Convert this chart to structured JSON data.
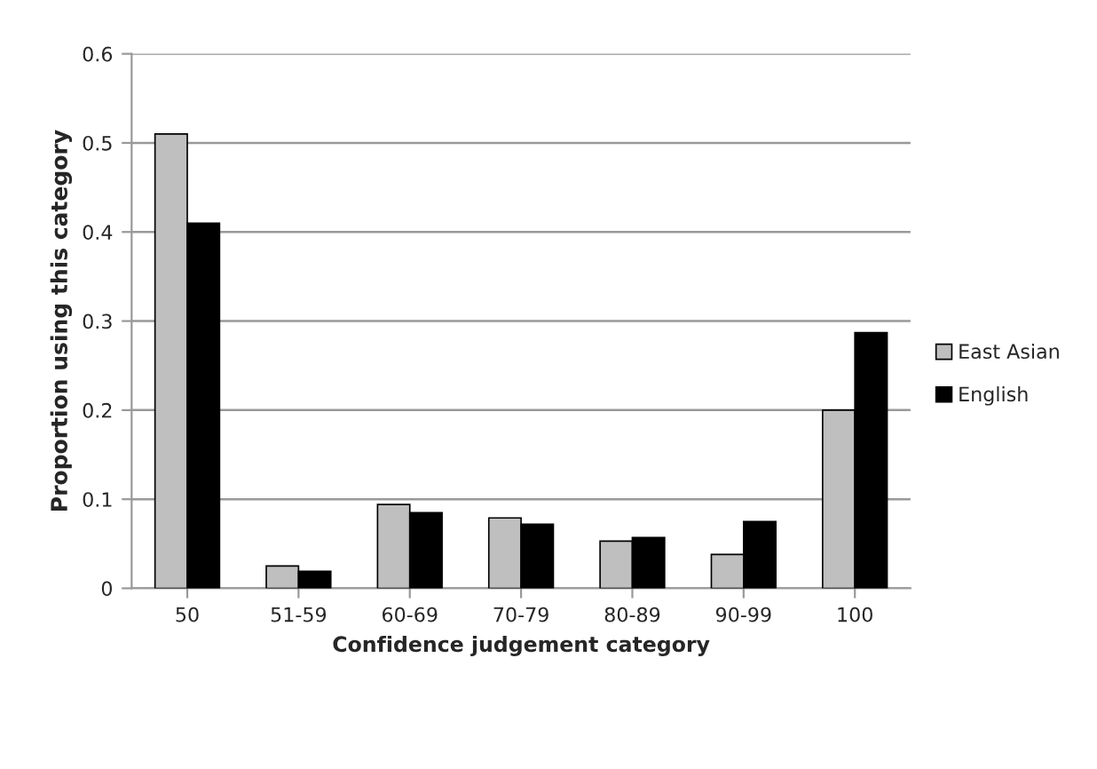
{
  "chart_data": {
    "type": "bar",
    "xlabel": "Confidence judgement category",
    "ylabel": "Proportion using this category",
    "categories": [
      "50",
      "51-59",
      "60-69",
      "70-79",
      "80-89",
      "90-99",
      "100"
    ],
    "series": [
      {
        "name": "East Asian",
        "color": "#bfbfbf",
        "values": [
          0.51,
          0.025,
          0.094,
          0.079,
          0.053,
          0.038,
          0.2
        ]
      },
      {
        "name": "English",
        "color": "#000000",
        "values": [
          0.41,
          0.019,
          0.085,
          0.072,
          0.057,
          0.075,
          0.287
        ]
      }
    ],
    "ylim": [
      0,
      0.6
    ],
    "yticks": [
      {
        "value": 0,
        "label": "0"
      },
      0.1,
      0.2,
      0.3,
      0.4,
      0.5,
      0.6
    ],
    "grid": "y",
    "legend": "right"
  }
}
